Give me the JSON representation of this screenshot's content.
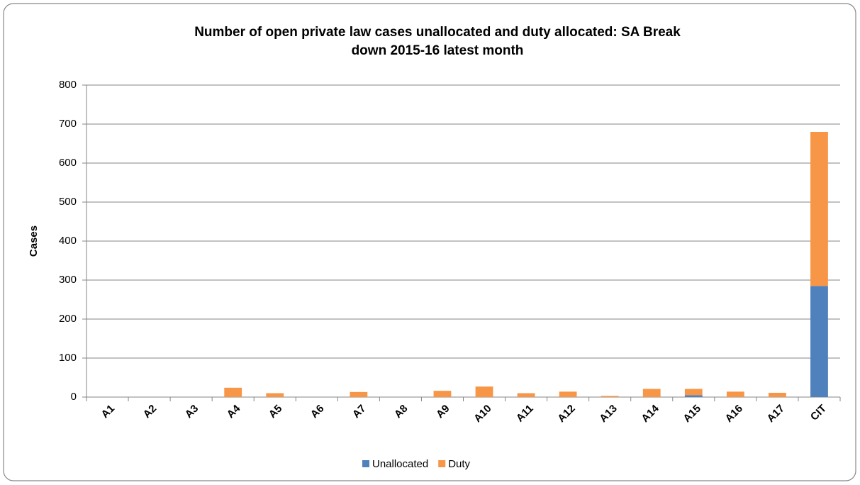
{
  "chart_data": {
    "type": "stacked_bar",
    "title": [
      "Number of open private law cases unallocated and duty allocated: SA Break",
      "down 2015-16 latest month"
    ],
    "y_label": "Cases",
    "categories": [
      "A1",
      "A2",
      "A3",
      "A4",
      "A5",
      "A6",
      "A7",
      "A8",
      "A9",
      "A10",
      "A11",
      "A12",
      "A13",
      "A14",
      "A15",
      "A16",
      "A17",
      "CIT"
    ],
    "series": [
      {
        "name": "Unallocated",
        "color": "#4f81bd",
        "values": [
          0,
          0,
          0,
          0,
          0,
          0,
          0,
          0,
          0,
          0,
          0,
          0,
          0,
          0,
          5,
          0,
          0,
          285
        ]
      },
      {
        "name": "Duty",
        "color": "#f79646",
        "values": [
          0,
          0,
          0,
          24,
          10,
          0,
          13,
          0,
          16,
          27,
          10,
          14,
          3,
          21,
          16,
          14,
          11,
          395
        ]
      }
    ],
    "ylim": [
      0,
      800
    ],
    "yticks": [
      0,
      100,
      200,
      300,
      400,
      500,
      600,
      700,
      800
    ],
    "grid": true,
    "legend": "bottom"
  }
}
